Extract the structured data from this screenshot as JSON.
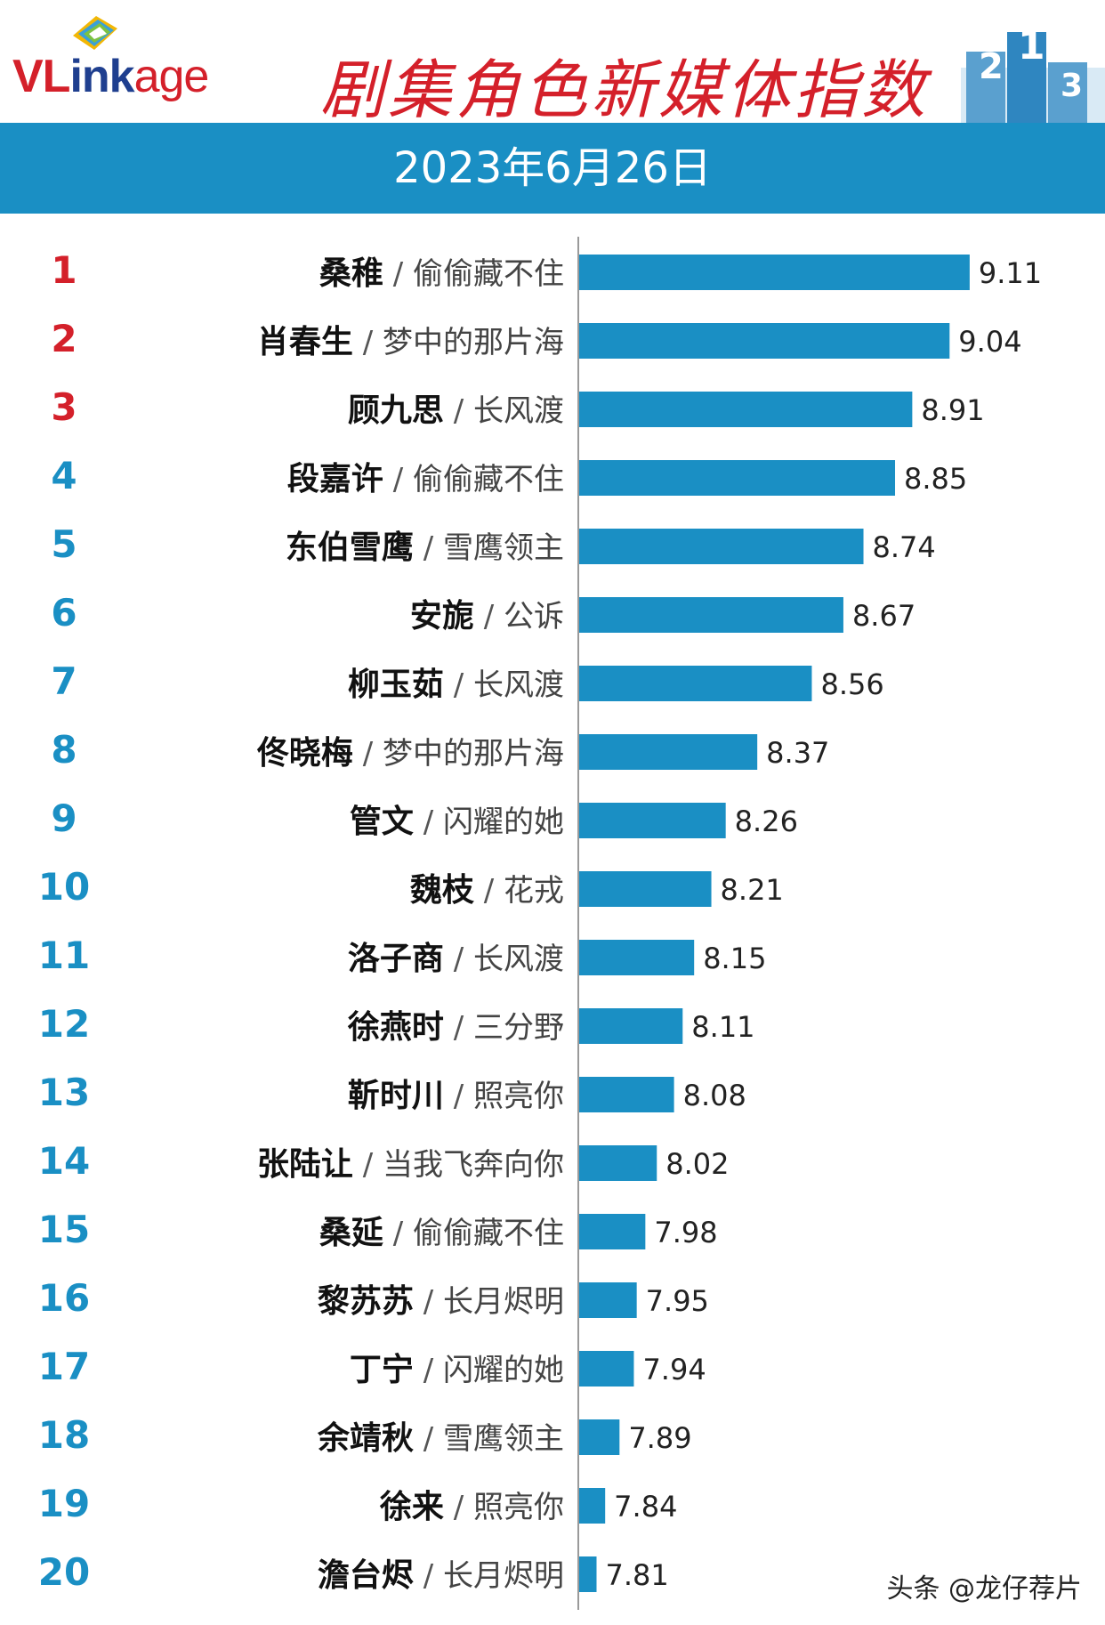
{
  "brand": {
    "logo_part1": "VL",
    "logo_part2": "ink",
    "logo_part3": "age",
    "podium_icon": "podium-icon"
  },
  "title": "剧集角色新媒体指数",
  "date": "2023年6月26日",
  "watermark": "头条 @龙仔荐片",
  "colors": {
    "bar": "#1a8fc4",
    "rank_top3": "#d4202a",
    "rank_other": "#1a8fc4",
    "title": "#d4202a",
    "banner": "#1a8fc4"
  },
  "chart_data": {
    "type": "bar",
    "orientation": "horizontal",
    "title": "剧集角色新媒体指数",
    "subtitle": "2023年6月26日",
    "separator": " / ",
    "xlim": [
      0,
      10
    ],
    "items": [
      {
        "rank": "1",
        "name": "桑稚",
        "drama": "偷偷藏不住",
        "value": 9.11
      },
      {
        "rank": "2",
        "name": "肖春生",
        "drama": "梦中的那片海",
        "value": 9.04
      },
      {
        "rank": "3",
        "name": "顾九思",
        "drama": "长风渡",
        "value": 8.91
      },
      {
        "rank": "4",
        "name": "段嘉许",
        "drama": "偷偷藏不住",
        "value": 8.85
      },
      {
        "rank": "5",
        "name": "东伯雪鹰",
        "drama": "雪鹰领主",
        "value": 8.74
      },
      {
        "rank": "6",
        "name": "安旎",
        "drama": "公诉",
        "value": 8.67
      },
      {
        "rank": "7",
        "name": "柳玉茹",
        "drama": "长风渡",
        "value": 8.56
      },
      {
        "rank": "8",
        "name": "佟晓梅",
        "drama": "梦中的那片海",
        "value": 8.37
      },
      {
        "rank": "9",
        "name": "管文",
        "drama": "闪耀的她",
        "value": 8.26
      },
      {
        "rank": "10",
        "name": "魏枝",
        "drama": "花戎",
        "value": 8.21
      },
      {
        "rank": "11",
        "name": "洛子商",
        "drama": "长风渡",
        "value": 8.15
      },
      {
        "rank": "12",
        "name": "徐燕时",
        "drama": "三分野",
        "value": 8.11
      },
      {
        "rank": "13",
        "name": "靳时川",
        "drama": "照亮你",
        "value": 8.08
      },
      {
        "rank": "14",
        "name": "张陆让",
        "drama": "当我飞奔向你",
        "value": 8.02
      },
      {
        "rank": "15",
        "name": "桑延",
        "drama": "偷偷藏不住",
        "value": 7.98
      },
      {
        "rank": "16",
        "name": "黎苏苏",
        "drama": "长月烬明",
        "value": 7.95
      },
      {
        "rank": "17",
        "name": "丁宁",
        "drama": "闪耀的她",
        "value": 7.94
      },
      {
        "rank": "18",
        "name": "余靖秋",
        "drama": "雪鹰领主",
        "value": 7.89
      },
      {
        "rank": "19",
        "name": "徐来",
        "drama": "照亮你",
        "value": 7.84
      },
      {
        "rank": "20",
        "name": "澹台烬",
        "drama": "长月烬明",
        "value": 7.81
      }
    ]
  }
}
